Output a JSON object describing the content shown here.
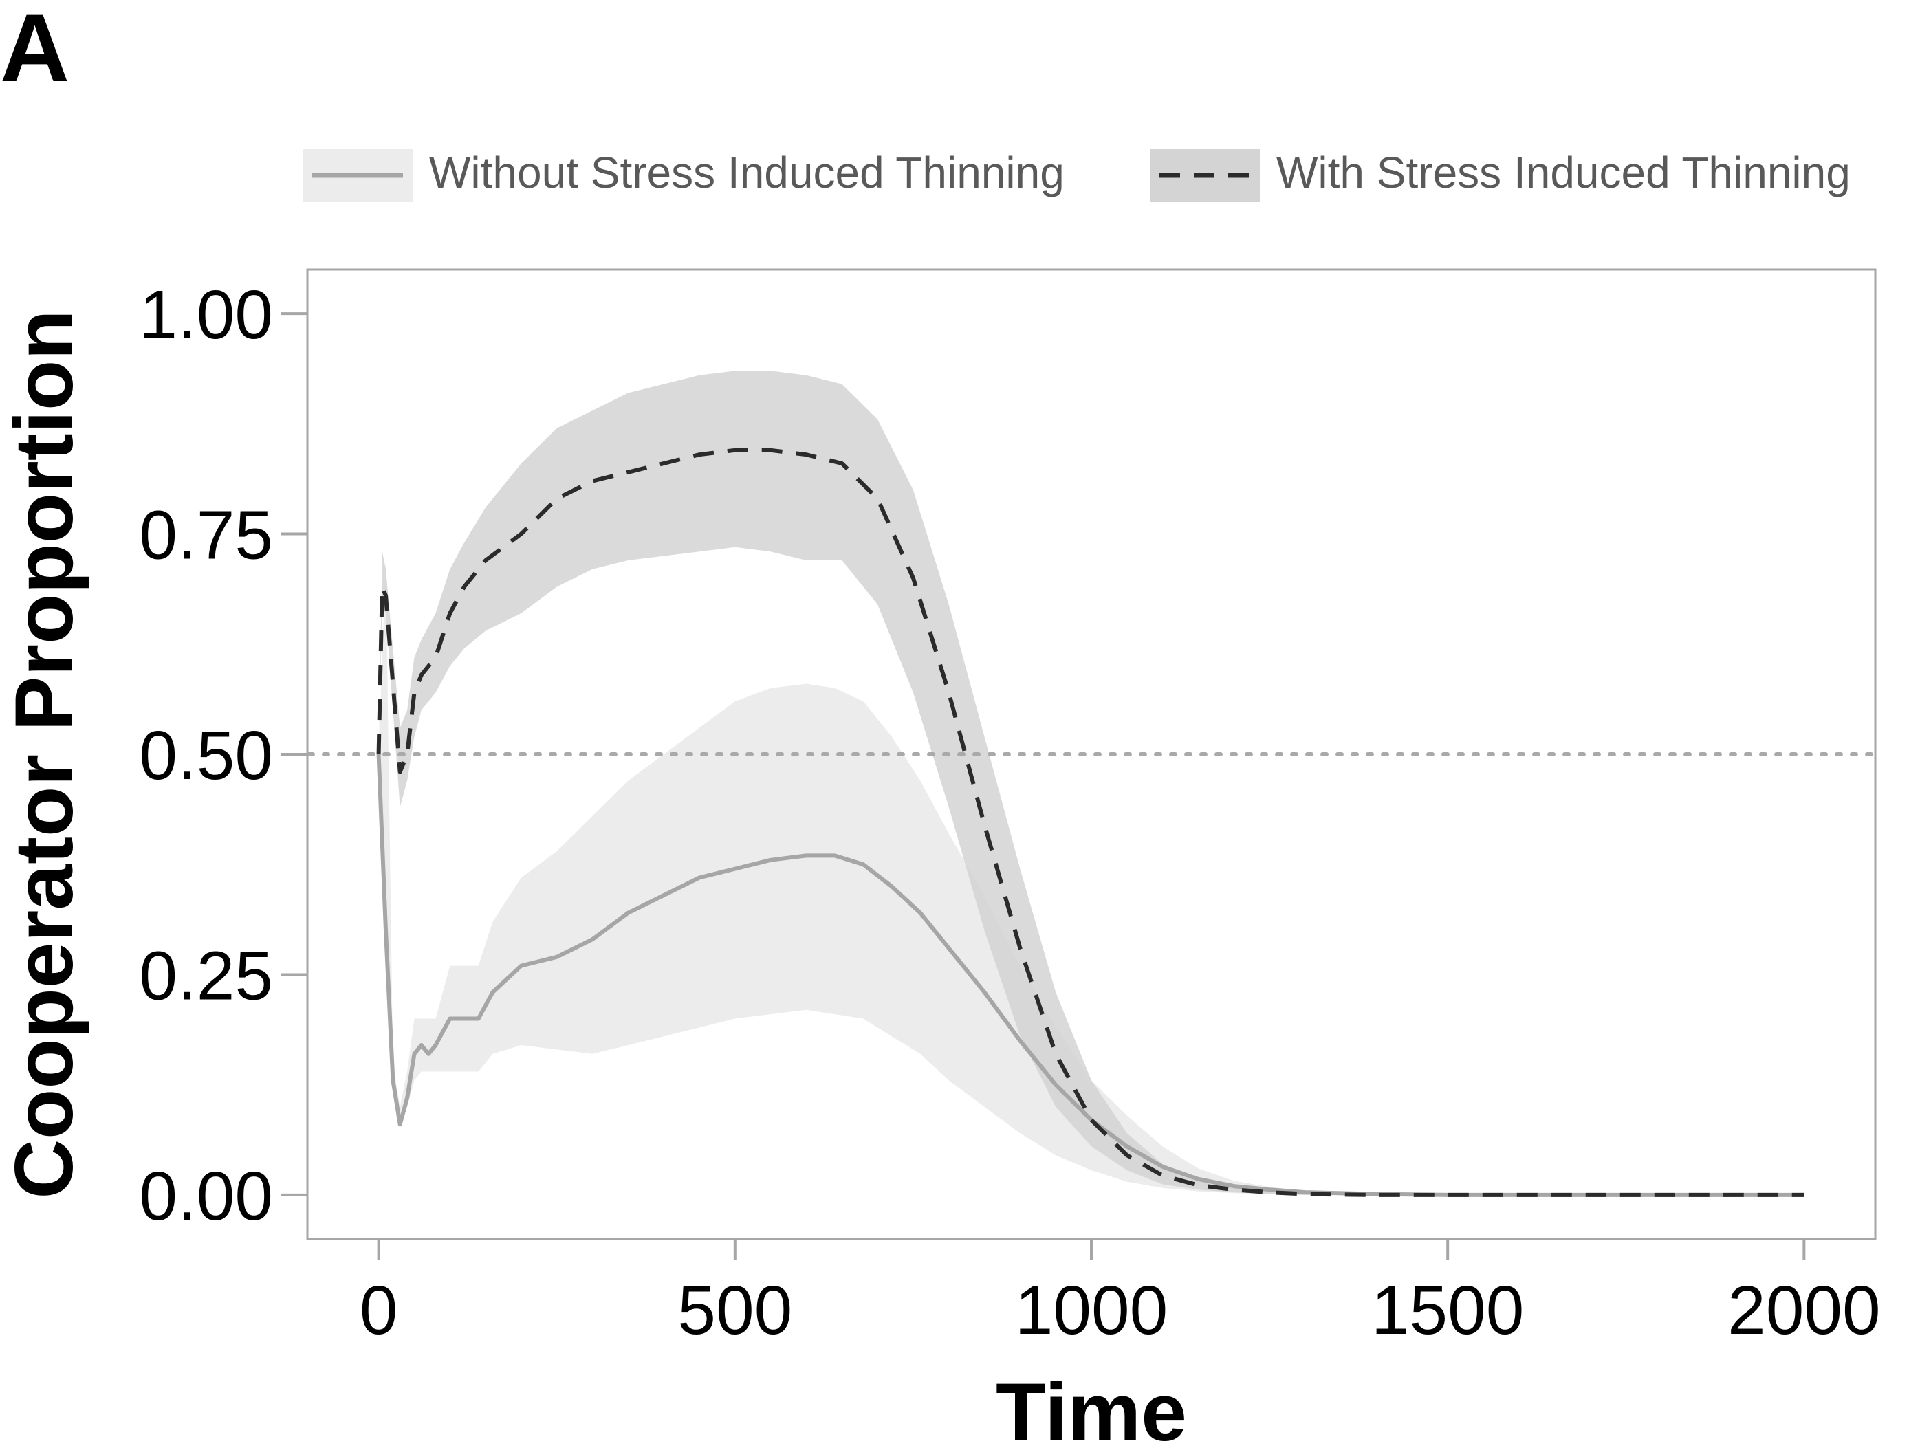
{
  "panel_label": "A",
  "chart_data": {
    "type": "line",
    "title": "",
    "xlabel": "Time",
    "ylabel": "Cooperator Proportion",
    "xlim": [
      -100,
      2100
    ],
    "ylim": [
      -0.05,
      1.05
    ],
    "xticks": [
      0,
      500,
      1000,
      1500,
      2000
    ],
    "xtick_labels": [
      "0",
      "500",
      "1000",
      "1500",
      "2000"
    ],
    "yticks": [
      0,
      0.25,
      0.5,
      0.75,
      1.0
    ],
    "ytick_labels": [
      "0.00",
      "0.25",
      "0.50",
      "0.75",
      "1.00"
    ],
    "grid": false,
    "legend_position": "top",
    "reference_line": {
      "y": 0.5,
      "style": "dotted"
    },
    "colors": {
      "without_line": "#a6a6a6",
      "without_band": "#ececec",
      "with_line": "#2b2b2b",
      "with_band": "#d4d4d4",
      "reference": "#a9a9a9",
      "axis": "#a6a6a6"
    },
    "series": [
      {
        "name": "Without Stress Induced Thinning",
        "line_style": "solid",
        "x": [
          0,
          10,
          20,
          30,
          40,
          50,
          60,
          70,
          80,
          100,
          120,
          140,
          160,
          200,
          250,
          300,
          350,
          400,
          450,
          500,
          550,
          600,
          640,
          680,
          720,
          760,
          800,
          850,
          900,
          950,
          1000,
          1050,
          1100,
          1150,
          1200,
          1250,
          1300,
          1400,
          1500,
          1750,
          2000
        ],
        "y": [
          0.5,
          0.3,
          0.13,
          0.08,
          0.11,
          0.16,
          0.17,
          0.16,
          0.17,
          0.2,
          0.2,
          0.2,
          0.23,
          0.26,
          0.27,
          0.29,
          0.32,
          0.34,
          0.36,
          0.37,
          0.38,
          0.385,
          0.385,
          0.375,
          0.35,
          0.32,
          0.28,
          0.23,
          0.175,
          0.125,
          0.085,
          0.055,
          0.032,
          0.018,
          0.01,
          0.006,
          0.003,
          0.001,
          0.0,
          0.0,
          0.0
        ],
        "lower": [
          0.5,
          0.3,
          0.12,
          0.08,
          0.1,
          0.13,
          0.14,
          0.14,
          0.14,
          0.14,
          0.14,
          0.14,
          0.16,
          0.17,
          0.165,
          0.16,
          0.17,
          0.18,
          0.19,
          0.2,
          0.205,
          0.21,
          0.205,
          0.2,
          0.18,
          0.16,
          0.13,
          0.1,
          0.07,
          0.045,
          0.028,
          0.015,
          0.008,
          0.004,
          0.002,
          0.001,
          0.0,
          0.0,
          0.0,
          0.0,
          0.0
        ],
        "upper": [
          0.5,
          0.72,
          0.15,
          0.1,
          0.14,
          0.2,
          0.2,
          0.2,
          0.2,
          0.26,
          0.26,
          0.26,
          0.31,
          0.36,
          0.39,
          0.43,
          0.47,
          0.5,
          0.53,
          0.56,
          0.575,
          0.58,
          0.575,
          0.56,
          0.52,
          0.47,
          0.41,
          0.34,
          0.26,
          0.19,
          0.13,
          0.09,
          0.055,
          0.03,
          0.016,
          0.009,
          0.005,
          0.002,
          0.001,
          0.0,
          0.0
        ]
      },
      {
        "name": "With Stress Induced Thinning",
        "line_style": "dashed",
        "x": [
          0,
          5,
          10,
          20,
          30,
          40,
          50,
          60,
          80,
          100,
          120,
          150,
          200,
          250,
          300,
          350,
          400,
          450,
          500,
          550,
          600,
          650,
          700,
          750,
          800,
          850,
          900,
          950,
          1000,
          1050,
          1100,
          1150,
          1200,
          1250,
          1300,
          1400,
          1500,
          1750,
          2000
        ],
        "y": [
          0.5,
          0.69,
          0.68,
          0.58,
          0.48,
          0.5,
          0.57,
          0.59,
          0.61,
          0.66,
          0.69,
          0.72,
          0.75,
          0.79,
          0.81,
          0.82,
          0.83,
          0.84,
          0.845,
          0.845,
          0.84,
          0.83,
          0.79,
          0.7,
          0.57,
          0.42,
          0.28,
          0.16,
          0.085,
          0.045,
          0.022,
          0.011,
          0.006,
          0.003,
          0.001,
          0.0,
          0.0,
          0.0,
          0.0
        ],
        "lower": [
          0.5,
          0.67,
          0.66,
          0.55,
          0.44,
          0.47,
          0.52,
          0.55,
          0.57,
          0.6,
          0.62,
          0.64,
          0.66,
          0.69,
          0.71,
          0.72,
          0.725,
          0.73,
          0.735,
          0.73,
          0.72,
          0.72,
          0.67,
          0.57,
          0.44,
          0.3,
          0.18,
          0.1,
          0.055,
          0.028,
          0.012,
          0.006,
          0.003,
          0.001,
          0.0,
          0.0,
          0.0,
          0.0,
          0.0
        ],
        "upper": [
          0.5,
          0.73,
          0.71,
          0.62,
          0.53,
          0.55,
          0.61,
          0.63,
          0.66,
          0.71,
          0.74,
          0.78,
          0.83,
          0.87,
          0.89,
          0.91,
          0.92,
          0.93,
          0.935,
          0.935,
          0.93,
          0.92,
          0.88,
          0.8,
          0.67,
          0.52,
          0.37,
          0.23,
          0.13,
          0.07,
          0.035,
          0.018,
          0.009,
          0.004,
          0.002,
          0.0,
          0.0,
          0.0,
          0.0
        ]
      }
    ]
  }
}
